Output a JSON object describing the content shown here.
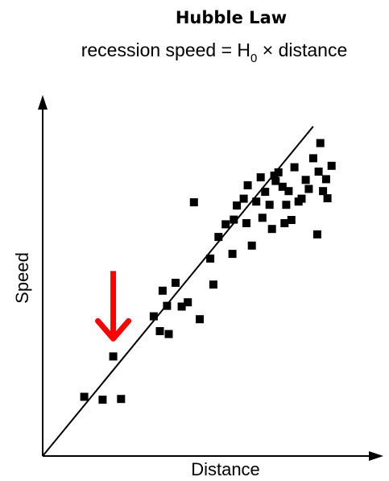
{
  "chart_data": {
    "type": "scatter",
    "title": "Hubble Law",
    "subtitle": {
      "prefix": "recession speed = H",
      "subscript": "0",
      "suffix": " × distance"
    },
    "xlabel": "Distance",
    "ylabel": "Speed",
    "xlim": [
      0,
      100
    ],
    "ylim": [
      0,
      100
    ],
    "grid": false,
    "legend": "none",
    "colors": {
      "points": "#000000",
      "fit_line": "#000000",
      "axes": "#000000",
      "highlight_arrow": "#ff0000"
    },
    "fit_line": {
      "slope": 1.15,
      "intercept": 0
    },
    "highlight": {
      "x": 20.7,
      "y": 27.6,
      "annotation": "red-down-arrow"
    },
    "points": [
      {
        "x": 12.2,
        "y": 16.4
      },
      {
        "x": 17.6,
        "y": 15.6
      },
      {
        "x": 23.0,
        "y": 15.8
      },
      {
        "x": 20.7,
        "y": 27.6
      },
      {
        "x": 32.6,
        "y": 38.7
      },
      {
        "x": 34.4,
        "y": 34.6
      },
      {
        "x": 37.0,
        "y": 33.8
      },
      {
        "x": 35.2,
        "y": 45.8
      },
      {
        "x": 36.5,
        "y": 41.6
      },
      {
        "x": 39.0,
        "y": 48.0
      },
      {
        "x": 40.8,
        "y": 41.4
      },
      {
        "x": 42.6,
        "y": 42.6
      },
      {
        "x": 46.1,
        "y": 37.9
      },
      {
        "x": 44.4,
        "y": 70.3
      },
      {
        "x": 49.2,
        "y": 54.7
      },
      {
        "x": 50.1,
        "y": 47.5
      },
      {
        "x": 51.6,
        "y": 60.7
      },
      {
        "x": 53.7,
        "y": 64.2
      },
      {
        "x": 55.7,
        "y": 56.0
      },
      {
        "x": 56.1,
        "y": 65.5
      },
      {
        "x": 57.0,
        "y": 69.4
      },
      {
        "x": 59.8,
        "y": 64.5
      },
      {
        "x": 60.2,
        "y": 75.0
      },
      {
        "x": 59.0,
        "y": 71.3
      },
      {
        "x": 61.4,
        "y": 58.3
      },
      {
        "x": 62.7,
        "y": 70.5
      },
      {
        "x": 64.0,
        "y": 77.2
      },
      {
        "x": 64.5,
        "y": 66.0
      },
      {
        "x": 65.3,
        "y": 73.2
      },
      {
        "x": 66.6,
        "y": 69.6
      },
      {
        "x": 67.3,
        "y": 62.9
      },
      {
        "x": 68.0,
        "y": 77.7
      },
      {
        "x": 68.4,
        "y": 76.2
      },
      {
        "x": 69.2,
        "y": 78.6
      },
      {
        "x": 70.4,
        "y": 74.6
      },
      {
        "x": 71.0,
        "y": 64.5
      },
      {
        "x": 71.5,
        "y": 69.6
      },
      {
        "x": 72.2,
        "y": 73.4
      },
      {
        "x": 73.0,
        "y": 65.4
      },
      {
        "x": 73.9,
        "y": 80.0
      },
      {
        "x": 75.1,
        "y": 70.5
      },
      {
        "x": 76.0,
        "y": 71.3
      },
      {
        "x": 77.2,
        "y": 76.5
      },
      {
        "x": 78.1,
        "y": 74.0
      },
      {
        "x": 79.4,
        "y": 82.5
      },
      {
        "x": 80.6,
        "y": 61.4
      },
      {
        "x": 81.0,
        "y": 78.8
      },
      {
        "x": 81.5,
        "y": 86.7
      },
      {
        "x": 82.3,
        "y": 73.4
      },
      {
        "x": 83.2,
        "y": 76.7
      },
      {
        "x": 83.6,
        "y": 71.4
      },
      {
        "x": 84.8,
        "y": 80.4
      }
    ]
  }
}
